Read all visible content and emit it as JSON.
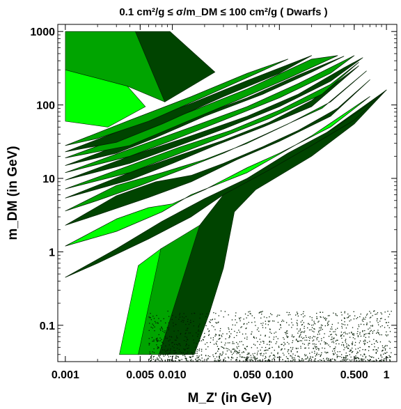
{
  "chart_data": {
    "type": "area",
    "title": "0.1 cm²/g ≤ σ/m_DM ≤ 100 cm²/g ( Dwarfs )",
    "xlabel": "M_Z' (in GeV)",
    "ylabel": "m_DM (in GeV)",
    "x_scale": "log",
    "y_scale": "log",
    "xlim": [
      0.00085,
      1.25
    ],
    "ylim": [
      0.032,
      1250
    ],
    "x_ticks": [
      {
        "value": 0.001,
        "label": "0.001"
      },
      {
        "value": 0.005,
        "label": "0.005"
      },
      {
        "value": 0.01,
        "label": "0.010"
      },
      {
        "value": 0.05,
        "label": "0.050"
      },
      {
        "value": 0.1,
        "label": "0.100"
      },
      {
        "value": 0.5,
        "label": "0.500"
      },
      {
        "value": 1,
        "label": "1"
      }
    ],
    "y_ticks": [
      {
        "value": 0.1,
        "label": "0.1"
      },
      {
        "value": 1,
        "label": "1"
      },
      {
        "value": 10,
        "label": "10"
      },
      {
        "value": 100,
        "label": "100"
      },
      {
        "value": 1000,
        "label": "1000"
      }
    ],
    "colors": {
      "light": "#00ff00",
      "medium": "#00a400",
      "dark": "#004400",
      "outline": "#002200",
      "scatter": "#001a00"
    },
    "regions": [
      {
        "name": "",
        "color": "dark",
        "points": [
          [
            0.0045,
            1000
          ],
          [
            0.0095,
            1000
          ],
          [
            0.025,
            280
          ],
          [
            0.0085,
            110
          ]
        ]
      },
      {
        "name": "",
        "color": "medium",
        "points": [
          [
            0.001,
            1000
          ],
          [
            0.0045,
            1000
          ],
          [
            0.0085,
            110
          ],
          [
            0.0038,
            180
          ],
          [
            0.001,
            300
          ]
        ]
      },
      {
        "name": "",
        "color": "light",
        "points": [
          [
            0.001,
            300
          ],
          [
            0.0038,
            180
          ],
          [
            0.0056,
            95
          ],
          [
            0.0025,
            50
          ],
          [
            0.001,
            60
          ]
        ]
      },
      {
        "name": "",
        "color": "light",
        "points": [
          [
            0.0032,
            0.04
          ],
          [
            0.0048,
            0.04
          ],
          [
            0.008,
            0.3
          ],
          [
            0.012,
            1.5
          ],
          [
            0.014,
            1.6
          ],
          [
            0.0078,
            1.1
          ],
          [
            0.0048,
            0.65
          ]
        ]
      },
      {
        "name": "",
        "color": "medium",
        "points": [
          [
            0.0048,
            0.04
          ],
          [
            0.0075,
            0.04
          ],
          [
            0.013,
            0.3
          ],
          [
            0.022,
            2.5
          ],
          [
            0.03,
            3.5
          ],
          [
            0.018,
            2.3
          ],
          [
            0.0078,
            1.1
          ]
        ]
      },
      {
        "name": "",
        "color": "dark",
        "points": [
          [
            0.0075,
            0.04
          ],
          [
            0.016,
            0.04
          ],
          [
            0.022,
            0.14
          ],
          [
            0.03,
            0.6
          ],
          [
            0.038,
            3.5
          ],
          [
            0.06,
            7
          ],
          [
            0.2,
            20
          ],
          [
            0.5,
            55
          ],
          [
            1,
            160
          ],
          [
            0.25,
            38
          ],
          [
            0.08,
            13
          ],
          [
            0.03,
            6
          ],
          [
            0.018,
            2.3
          ]
        ]
      }
    ],
    "bands": [
      {
        "color": "dark",
        "points": [
          [
            0.001,
            0.45
          ],
          [
            0.003,
            1.1
          ],
          [
            0.008,
            2.6
          ],
          [
            0.02,
            5.3
          ],
          [
            0.05,
            10
          ],
          [
            0.12,
            22
          ],
          [
            0.3,
            45
          ],
          [
            0.6,
            90
          ],
          [
            1,
            160
          ],
          [
            0.5,
            62
          ],
          [
            0.2,
            28
          ],
          [
            0.08,
            13
          ],
          [
            0.03,
            6
          ],
          [
            0.015,
            3
          ],
          [
            0.006,
            1.5
          ],
          [
            0.002,
            0.7
          ]
        ]
      },
      {
        "color": "light",
        "points": [
          [
            0.001,
            1.2
          ],
          [
            0.003,
            2.8
          ],
          [
            0.006,
            4
          ],
          [
            0.01,
            4.5
          ],
          [
            0.02,
            7
          ],
          [
            0.05,
            14
          ],
          [
            0.1,
            22
          ],
          [
            0.3,
            50
          ],
          [
            0.7,
            130
          ],
          [
            0.2,
            38
          ],
          [
            0.05,
            12
          ],
          [
            0.015,
            6
          ],
          [
            0.008,
            3.5
          ],
          [
            0.003,
            1.9
          ]
        ]
      },
      {
        "color": "dark",
        "points": [
          [
            0.001,
            2.3
          ],
          [
            0.003,
            5.8
          ],
          [
            0.007,
            9
          ],
          [
            0.015,
            11
          ],
          [
            0.03,
            16
          ],
          [
            0.07,
            27
          ],
          [
            0.15,
            45
          ],
          [
            0.35,
            90
          ],
          [
            0.7,
            220
          ],
          [
            0.3,
            70
          ],
          [
            0.1,
            32
          ],
          [
            0.04,
            18
          ],
          [
            0.015,
            9
          ],
          [
            0.006,
            5.5
          ],
          [
            0.002,
            3.2
          ]
        ]
      },
      {
        "color": "medium",
        "points": [
          [
            0.001,
            3.6
          ],
          [
            0.003,
            8
          ],
          [
            0.008,
            12
          ],
          [
            0.02,
            18
          ],
          [
            0.05,
            30
          ],
          [
            0.12,
            55
          ],
          [
            0.3,
            110
          ],
          [
            0.65,
            290
          ],
          [
            0.25,
            90
          ],
          [
            0.08,
            42
          ],
          [
            0.03,
            22
          ],
          [
            0.012,
            13
          ],
          [
            0.005,
            8
          ],
          [
            0.002,
            5
          ]
        ]
      },
      {
        "color": "dark",
        "points": [
          [
            0.001,
            5.4
          ],
          [
            0.004,
            12
          ],
          [
            0.012,
            21
          ],
          [
            0.03,
            33
          ],
          [
            0.08,
            58
          ],
          [
            0.2,
            115
          ],
          [
            0.55,
            340
          ],
          [
            0.2,
            95
          ],
          [
            0.07,
            50
          ],
          [
            0.025,
            28
          ],
          [
            0.01,
            16
          ],
          [
            0.004,
            9.5
          ]
        ]
      },
      {
        "color": "medium",
        "points": [
          [
            0.001,
            7.2
          ],
          [
            0.004,
            15
          ],
          [
            0.012,
            27
          ],
          [
            0.035,
            45
          ],
          [
            0.1,
            85
          ],
          [
            0.3,
            190
          ],
          [
            0.55,
            380
          ],
          [
            0.25,
            140
          ],
          [
            0.08,
            65
          ],
          [
            0.03,
            37
          ],
          [
            0.01,
            20
          ],
          [
            0.004,
            12
          ]
        ]
      },
      {
        "color": "dark",
        "points": [
          [
            0.001,
            9.5
          ],
          [
            0.004,
            20
          ],
          [
            0.015,
            38
          ],
          [
            0.05,
            70
          ],
          [
            0.15,
            140
          ],
          [
            0.4,
            320
          ],
          [
            0.6,
            440
          ],
          [
            0.3,
            210
          ],
          [
            0.1,
            95
          ],
          [
            0.03,
            47
          ],
          [
            0.01,
            26
          ],
          [
            0.004,
            16
          ]
        ]
      },
      {
        "color": "medium",
        "points": [
          [
            0.001,
            12
          ],
          [
            0.004,
            25
          ],
          [
            0.015,
            50
          ],
          [
            0.05,
            95
          ],
          [
            0.15,
            195
          ],
          [
            0.5,
            470
          ],
          [
            0.3,
            270
          ],
          [
            0.1,
            125
          ],
          [
            0.03,
            62
          ],
          [
            0.01,
            33
          ],
          [
            0.004,
            20
          ]
        ]
      },
      {
        "color": "dark",
        "points": [
          [
            0.001,
            15
          ],
          [
            0.004,
            32
          ],
          [
            0.015,
            65
          ],
          [
            0.05,
            125
          ],
          [
            0.15,
            255
          ],
          [
            0.4,
            460
          ],
          [
            0.2,
            280
          ],
          [
            0.07,
            140
          ],
          [
            0.02,
            70
          ],
          [
            0.007,
            36
          ],
          [
            0.003,
            22
          ]
        ]
      },
      {
        "color": "medium",
        "points": [
          [
            0.001,
            19
          ],
          [
            0.004,
            40
          ],
          [
            0.015,
            82
          ],
          [
            0.05,
            165
          ],
          [
            0.2,
            420
          ],
          [
            0.35,
            470
          ],
          [
            0.12,
            230
          ],
          [
            0.04,
            115
          ],
          [
            0.012,
            55
          ],
          [
            0.004,
            28
          ]
        ]
      },
      {
        "color": "dark",
        "points": [
          [
            0.001,
            23
          ],
          [
            0.004,
            50
          ],
          [
            0.015,
            105
          ],
          [
            0.05,
            215
          ],
          [
            0.2,
            470
          ],
          [
            0.1,
            270
          ],
          [
            0.03,
            130
          ],
          [
            0.008,
            55
          ],
          [
            0.003,
            31
          ]
        ]
      },
      {
        "color": "medium",
        "points": [
          [
            0.001,
            28
          ],
          [
            0.004,
            62
          ],
          [
            0.015,
            130
          ],
          [
            0.05,
            270
          ],
          [
            0.12,
            420
          ],
          [
            0.06,
            265
          ],
          [
            0.02,
            130
          ],
          [
            0.006,
            60
          ],
          [
            0.002,
            35
          ]
        ]
      }
    ],
    "scatter_region": {
      "color": "scatter",
      "x_range": [
        0.006,
        1.1
      ],
      "y_range": [
        0.033,
        0.16
      ],
      "count": 1400
    }
  }
}
